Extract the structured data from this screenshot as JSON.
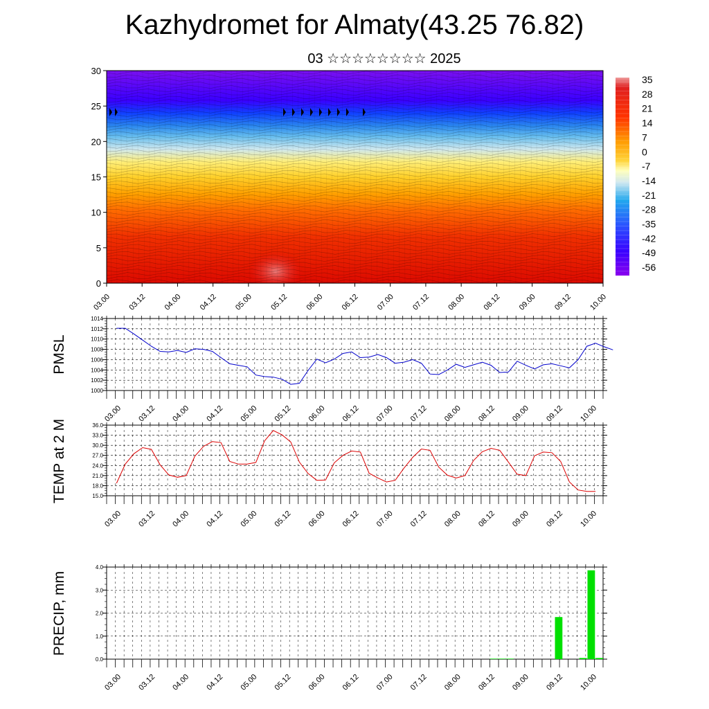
{
  "header": {
    "title": "Kazhydromet for Almaty(43.25 76.82)",
    "subtitle": "03 ☆☆☆☆☆☆☆☆ 2025"
  },
  "time_ticks": [
    "03.00",
    "03.12",
    "04.00",
    "04.12",
    "05.00",
    "05.12",
    "06.00",
    "06.12",
    "07.00",
    "07.12",
    "08.00",
    "08.12",
    "09.00",
    "09.12",
    "10.00"
  ],
  "colors": {
    "pmsl_line": "#0000cc",
    "temp_line": "#dd0000",
    "precip_bar": "#00e000",
    "palette": [
      "#8800ee",
      "#3300ff",
      "#0055ff",
      "#22aaee",
      "#aaddee",
      "#ffffcc",
      "#ffdd33",
      "#ff9900",
      "#ff4400",
      "#dd0000",
      "#ee8888"
    ]
  },
  "chart_data": [
    {
      "type": "heatmap",
      "name_hint": "cross-section",
      "ylim": [
        0,
        30
      ],
      "yticks": [
        "0",
        "5",
        "10",
        "15",
        "20",
        "25",
        "30"
      ],
      "colorbar_labels": [
        "35",
        "28",
        "21",
        "14",
        "7",
        "0",
        "-7",
        "-14",
        "-21",
        "-28",
        "-35",
        "-42",
        "-49",
        "-56"
      ],
      "colorbar_range": [
        -60,
        36
      ],
      "grid": false
    },
    {
      "type": "line",
      "ylabel": "PMSL",
      "ylim": [
        1000,
        1014
      ],
      "yticks": [
        "1014",
        "1012",
        "1010",
        "1008",
        "1006",
        "1004",
        "1002",
        "1000"
      ],
      "grid": true,
      "values": [
        1012.1,
        1012.1,
        1011.0,
        1009.8,
        1008.6,
        1007.6,
        1007.5,
        1007.8,
        1007.4,
        1008.1,
        1008.0,
        1007.6,
        1006.4,
        1005.2,
        1004.9,
        1004.6,
        1003.0,
        1002.7,
        1002.6,
        1002.2,
        1001.2,
        1001.4,
        1003.9,
        1006.1,
        1005.4,
        1006.1,
        1007.2,
        1007.5,
        1006.4,
        1006.5,
        1007.0,
        1006.4,
        1005.3,
        1005.5,
        1006.0,
        1005.3,
        1003.2,
        1003.1,
        1004.0,
        1005.1,
        1004.5,
        1005.0,
        1005.5,
        1004.9,
        1003.5,
        1003.6,
        1005.7,
        1004.9,
        1004.2,
        1005.0,
        1005.2,
        1004.8,
        1004.4,
        1006.0,
        1008.6,
        1009.2,
        1008.5,
        1007.9
      ]
    },
    {
      "type": "line",
      "ylabel": "TEMP at 2 M",
      "ylim": [
        15,
        36
      ],
      "yticks": [
        "36.0",
        "33.0",
        "30.0",
        "27.0",
        "24.0",
        "21.0",
        "18.0",
        "15.0"
      ],
      "grid": true,
      "values": [
        18.7,
        24.4,
        27.5,
        29.3,
        28.8,
        24.2,
        21.2,
        20.5,
        21.0,
        26.8,
        29.7,
        31.1,
        30.8,
        25.2,
        24.4,
        24.4,
        24.9,
        31.3,
        34.4,
        33.1,
        31.0,
        25.0,
        21.6,
        19.6,
        19.7,
        24.8,
        27.0,
        28.3,
        28.0,
        21.7,
        20.3,
        19.1,
        19.6,
        23.2,
        26.4,
        28.9,
        28.5,
        23.5,
        21.1,
        20.3,
        21.0,
        25.5,
        28.1,
        29.1,
        28.5,
        25.0,
        21.4,
        21.0,
        26.9,
        28.0,
        27.8,
        25.2,
        19.1,
        16.7,
        16.3,
        16.3
      ]
    },
    {
      "type": "bar",
      "ylabel": "PRECIP, mm",
      "ylim": [
        0,
        4
      ],
      "yticks": [
        "4.0",
        "3.0",
        "2.0",
        "1.0",
        "0.0"
      ],
      "grid": true,
      "values": [
        0,
        0,
        0,
        0,
        0,
        0,
        0,
        0,
        0,
        0,
        0,
        0,
        0,
        0,
        0,
        0,
        0,
        0,
        0,
        0,
        0,
        0,
        0,
        0,
        0,
        0,
        0,
        0,
        0,
        0,
        0,
        0,
        0,
        0,
        0,
        0,
        0,
        0,
        0,
        0,
        0,
        0,
        0,
        0,
        0,
        0,
        0,
        0.02,
        0.02,
        0.02,
        0,
        0,
        0,
        0,
        0,
        1.83,
        0,
        0,
        0.05,
        3.86,
        0.05
      ]
    }
  ]
}
